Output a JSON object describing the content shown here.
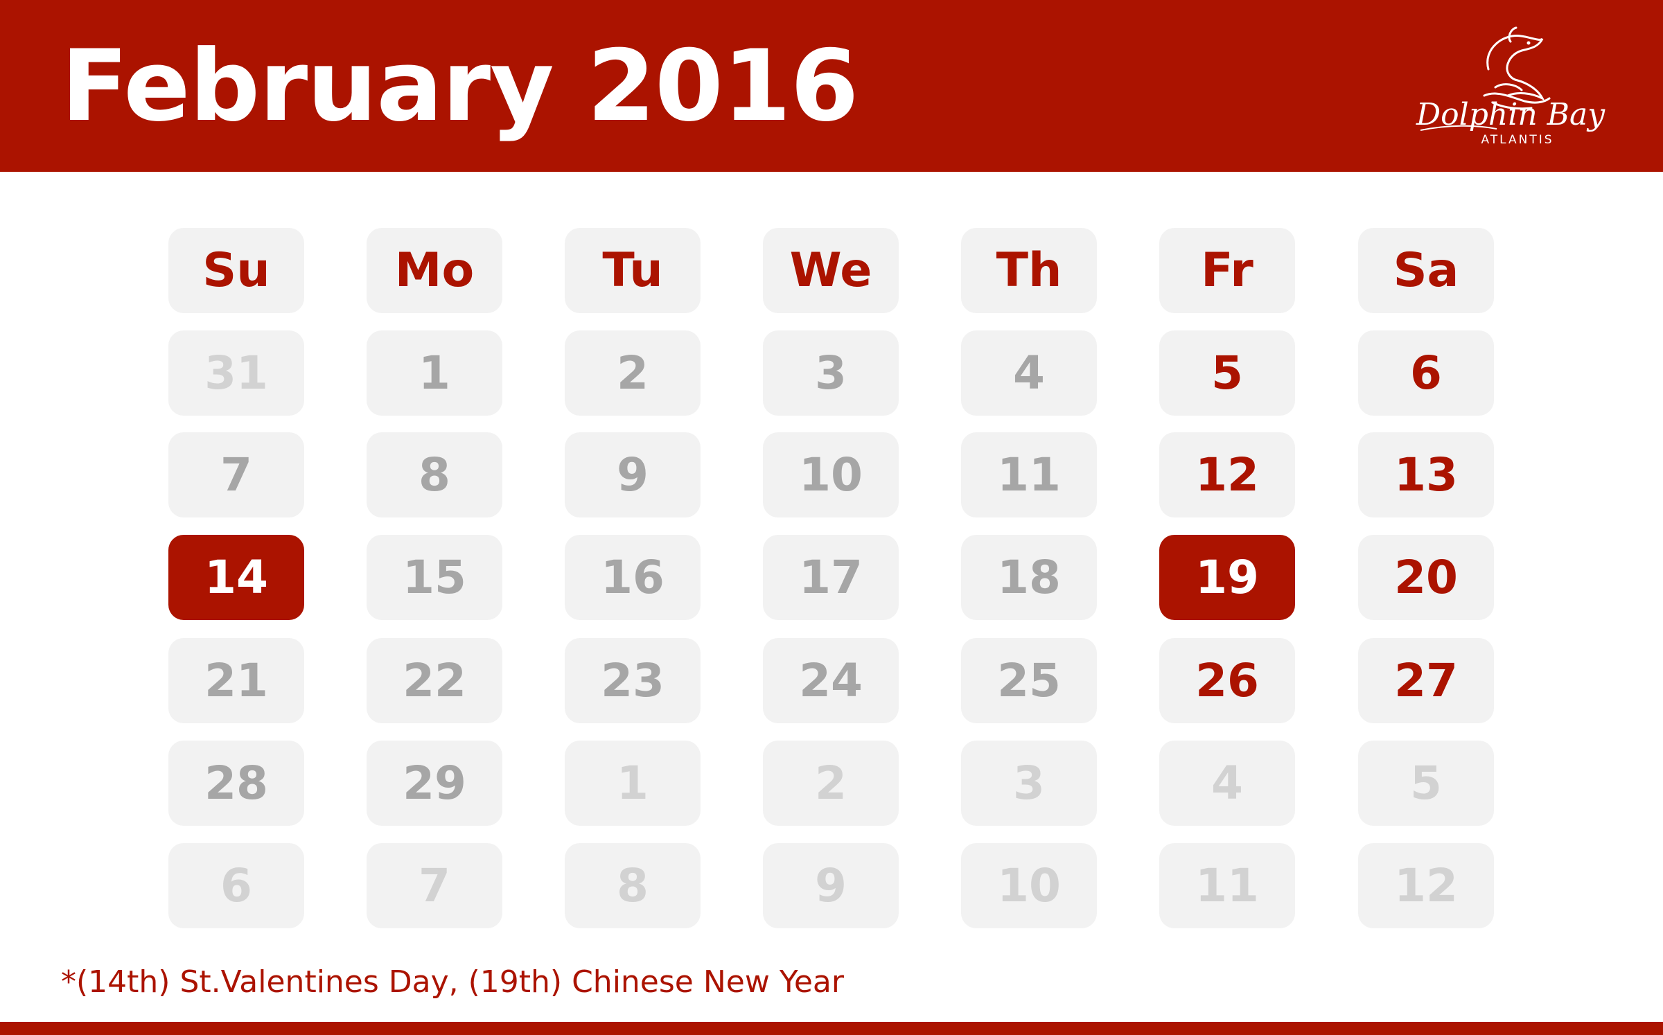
{
  "header": {
    "title": "February 2016",
    "logo_text": "Dolphin Bay",
    "logo_subtext": "ATLANTIS"
  },
  "colors": {
    "accent": "#ab1300",
    "cell_bg": "#f2f2f2",
    "day_text": "#a6a6a6",
    "other_month_text": "#d2d2d2"
  },
  "weekdays": [
    "Su",
    "Mo",
    "Tu",
    "We",
    "Th",
    "Fr",
    "Sa"
  ],
  "weeks": [
    [
      {
        "d": "31",
        "t": "other"
      },
      {
        "d": "1",
        "t": "main"
      },
      {
        "d": "2",
        "t": "main"
      },
      {
        "d": "3",
        "t": "main"
      },
      {
        "d": "4",
        "t": "main"
      },
      {
        "d": "5",
        "t": "weekend"
      },
      {
        "d": "6",
        "t": "weekend"
      }
    ],
    [
      {
        "d": "7",
        "t": "main"
      },
      {
        "d": "8",
        "t": "main"
      },
      {
        "d": "9",
        "t": "main"
      },
      {
        "d": "10",
        "t": "main"
      },
      {
        "d": "11",
        "t": "main"
      },
      {
        "d": "12",
        "t": "weekend"
      },
      {
        "d": "13",
        "t": "weekend"
      }
    ],
    [
      {
        "d": "14",
        "t": "holiday"
      },
      {
        "d": "15",
        "t": "main"
      },
      {
        "d": "16",
        "t": "main"
      },
      {
        "d": "17",
        "t": "main"
      },
      {
        "d": "18",
        "t": "main"
      },
      {
        "d": "19",
        "t": "holiday"
      },
      {
        "d": "20",
        "t": "weekend"
      }
    ],
    [
      {
        "d": "21",
        "t": "main"
      },
      {
        "d": "22",
        "t": "main"
      },
      {
        "d": "23",
        "t": "main"
      },
      {
        "d": "24",
        "t": "main"
      },
      {
        "d": "25",
        "t": "main"
      },
      {
        "d": "26",
        "t": "weekend"
      },
      {
        "d": "27",
        "t": "weekend"
      }
    ],
    [
      {
        "d": "28",
        "t": "main"
      },
      {
        "d": "29",
        "t": "main"
      },
      {
        "d": "1",
        "t": "other"
      },
      {
        "d": "2",
        "t": "other"
      },
      {
        "d": "3",
        "t": "other"
      },
      {
        "d": "4",
        "t": "other"
      },
      {
        "d": "5",
        "t": "other"
      }
    ],
    [
      {
        "d": "6",
        "t": "other"
      },
      {
        "d": "7",
        "t": "other"
      },
      {
        "d": "8",
        "t": "other"
      },
      {
        "d": "9",
        "t": "other"
      },
      {
        "d": "10",
        "t": "other"
      },
      {
        "d": "11",
        "t": "other"
      },
      {
        "d": "12",
        "t": "other"
      }
    ]
  ],
  "footnote": "*(14th) St.Valentines Day, (19th) Chinese New Year"
}
